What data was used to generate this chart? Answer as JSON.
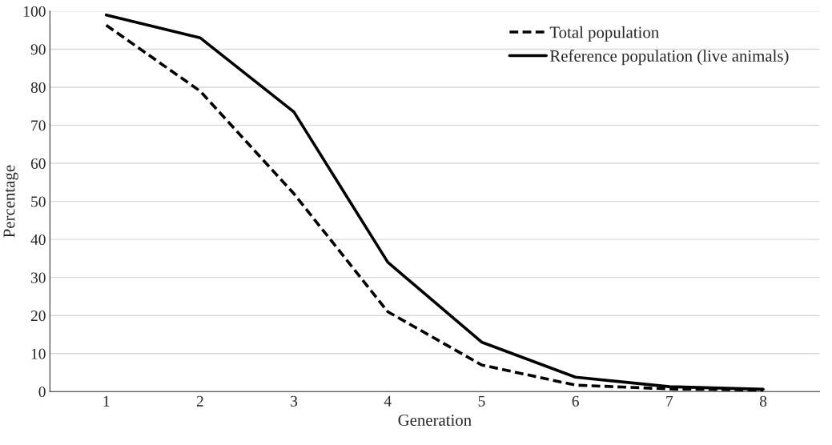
{
  "chart_data": {
    "type": "line",
    "xlabel": "Generation",
    "ylabel": "Percentage",
    "categories": [
      "1",
      "2",
      "3",
      "4",
      "5",
      "6",
      "7",
      "8"
    ],
    "series": [
      {
        "name": "Total population",
        "color": "#000000",
        "line_style": "dashed",
        "values": [
          96.3,
          79,
          52,
          21,
          7,
          1.7,
          0.7,
          0.4
        ]
      },
      {
        "name": "Reference population (live animals)",
        "color": "#000000",
        "line_style": "solid",
        "values": [
          99,
          93,
          73.5,
          34,
          13,
          3.8,
          1.3,
          0.6
        ]
      }
    ],
    "ylim": [
      0,
      100
    ],
    "yticks": [
      0,
      10,
      20,
      30,
      40,
      50,
      60,
      70,
      80,
      90,
      100
    ],
    "grid": "y",
    "legend": "top right",
    "marker": "none"
  }
}
